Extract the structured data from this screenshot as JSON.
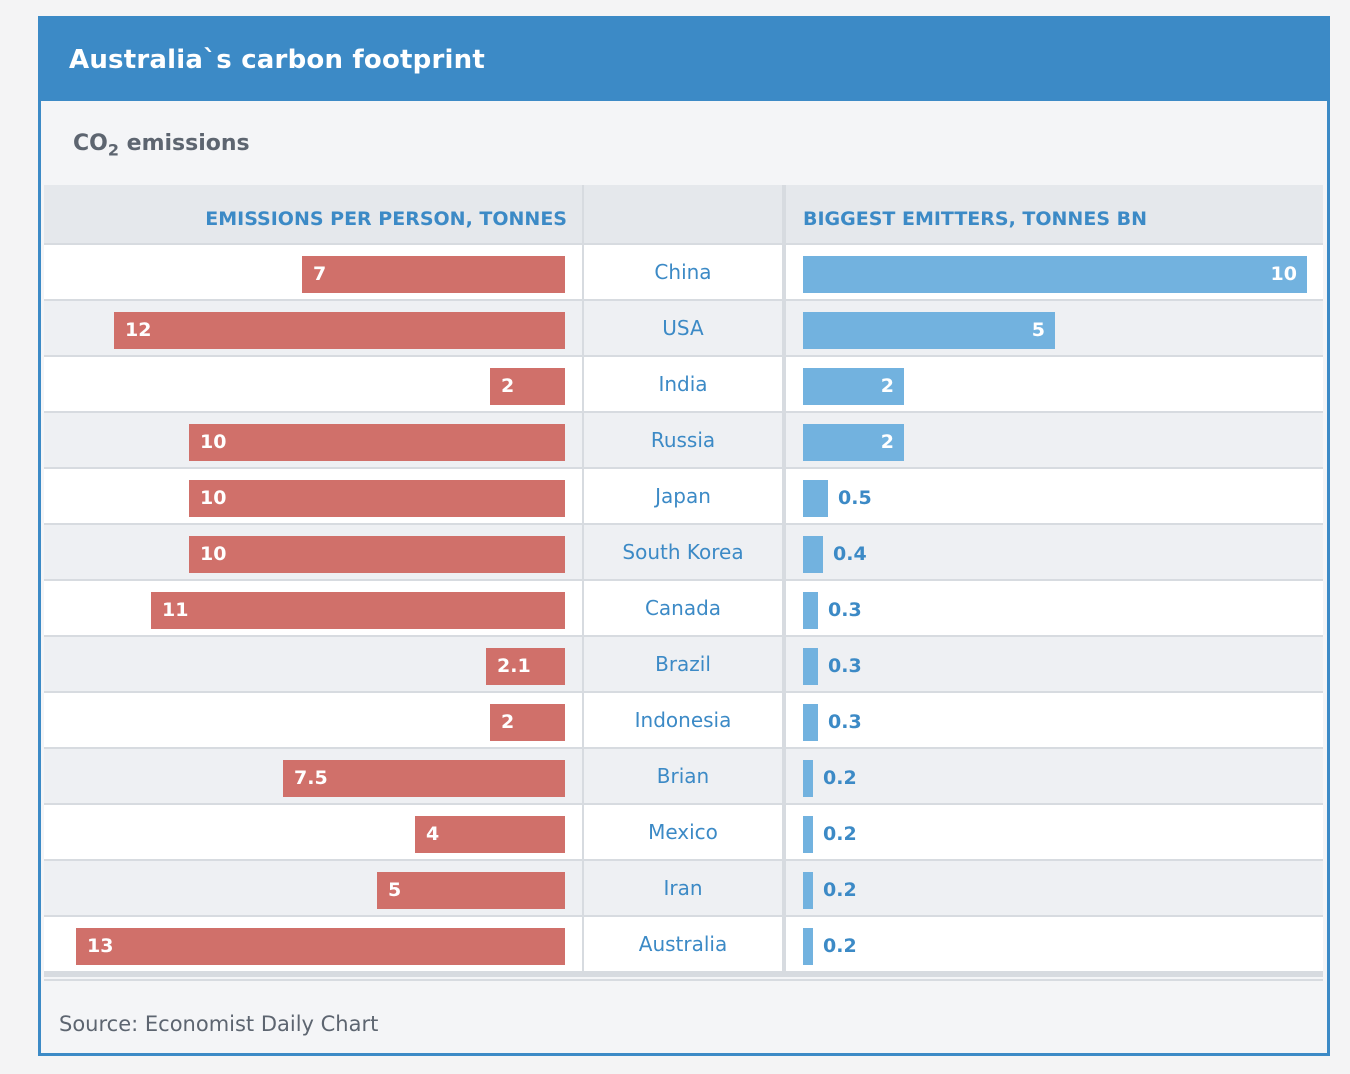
{
  "title": "Australia`s carbon footprint",
  "subtitle": {
    "prefix": "CO",
    "subscript": "2",
    "suffix": " emissions"
  },
  "headers": {
    "left": "EMISSIONS PER PERSON, TONNES",
    "right": "BIGGEST EMITTERS, TONNES BN"
  },
  "source": "Source: Economist Daily Chart",
  "colors": {
    "per_person_bar": "#d0706a",
    "emitters_bar": "#72b2df",
    "accent": "#3c8ac6"
  },
  "chart_data": {
    "type": "bar",
    "categories": [
      "China",
      "USA",
      "India",
      "Russia",
      "Japan",
      "South Korea",
      "Canada",
      "Brazil",
      "Indonesia",
      "Brian",
      "Mexico",
      "Iran",
      "Australia"
    ],
    "series": [
      {
        "name": "EMISSIONS PER PERSON, TONNES",
        "values": [
          7,
          12,
          2,
          10,
          10,
          10,
          11,
          2.1,
          2,
          7.5,
          4,
          5,
          13
        ],
        "xlim": [
          0,
          13.4
        ]
      },
      {
        "name": "BIGGEST EMITTERS, TONNES BN",
        "values": [
          10,
          5,
          2,
          2,
          0.5,
          0.4,
          0.3,
          0.3,
          0.3,
          0.2,
          0.2,
          0.2,
          0.2
        ],
        "xlim": [
          0,
          10
        ]
      }
    ]
  }
}
